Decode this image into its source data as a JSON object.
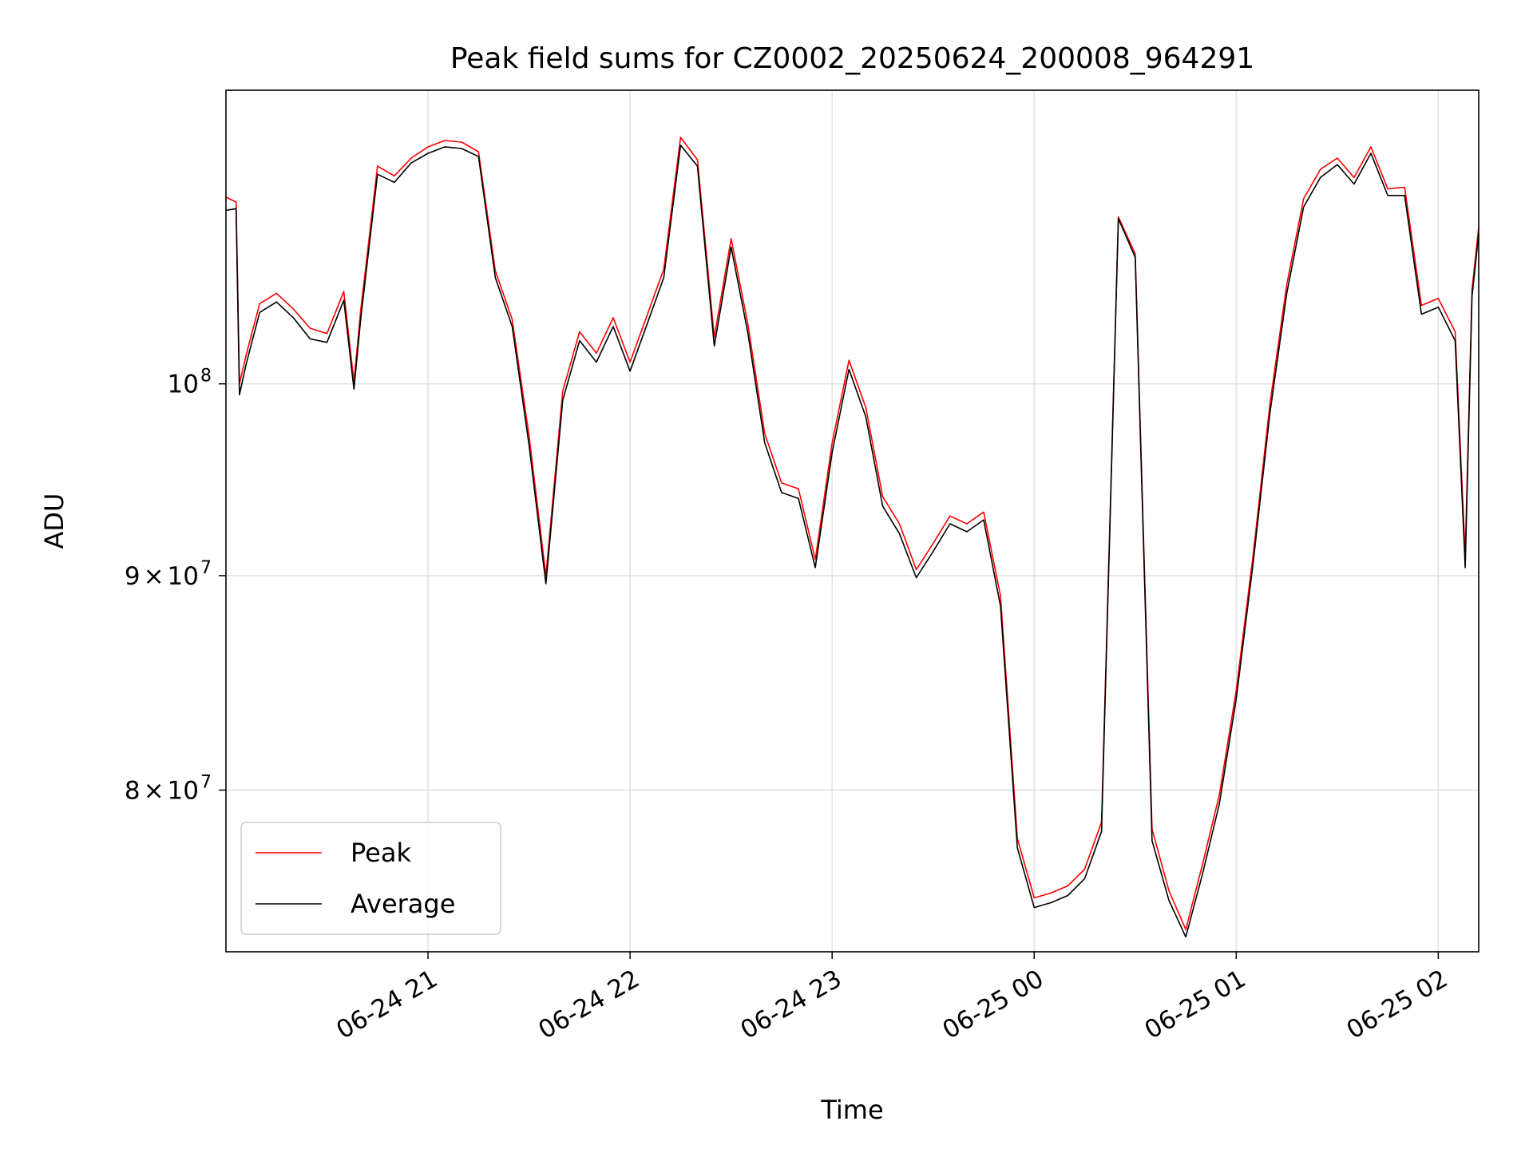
{
  "chart_data": {
    "type": "line",
    "title": "Peak field sums for CZ0002_20250624_200008_964291",
    "xlabel": "Time",
    "ylabel": "ADU",
    "y_scale": "log",
    "grid": true,
    "legend_position": "lower-left",
    "xlim": [
      "2025-06-24 20:00",
      "2025-06-25 02:12"
    ],
    "ylim": [
      73200000,
      117500000
    ],
    "x_ticks": [
      {
        "label": "06-24 21",
        "value": "2025-06-24 21:00"
      },
      {
        "label": "06-24 22",
        "value": "2025-06-24 22:00"
      },
      {
        "label": "06-24 23",
        "value": "2025-06-24 23:00"
      },
      {
        "label": "06-25 00",
        "value": "2025-06-25 00:00"
      },
      {
        "label": "06-25 01",
        "value": "2025-06-25 01:00"
      },
      {
        "label": "06-25 02",
        "value": "2025-06-25 02:00"
      }
    ],
    "y_ticks": [
      {
        "base": "8",
        "exp": "7",
        "mantissa": true,
        "value": 80000000
      },
      {
        "base": "9",
        "exp": "7",
        "mantissa": true,
        "value": 90000000
      },
      {
        "base": "10",
        "exp": "8",
        "mantissa": false,
        "value": 100000000
      }
    ],
    "series": [
      {
        "name": "Peak",
        "color": "#ff0000",
        "x": [
          "2025-06-24 20:00",
          "2025-06-24 20:03",
          "2025-06-24 20:04",
          "2025-06-24 20:06",
          "2025-06-24 20:10",
          "2025-06-24 20:15",
          "2025-06-24 20:20",
          "2025-06-24 20:25",
          "2025-06-24 20:30",
          "2025-06-24 20:35",
          "2025-06-24 20:38",
          "2025-06-24 20:40",
          "2025-06-24 20:45",
          "2025-06-24 20:50",
          "2025-06-24 20:55",
          "2025-06-24 21:00",
          "2025-06-24 21:05",
          "2025-06-24 21:10",
          "2025-06-24 21:15",
          "2025-06-24 21:20",
          "2025-06-24 21:25",
          "2025-06-24 21:30",
          "2025-06-24 21:35",
          "2025-06-24 21:40",
          "2025-06-24 21:45",
          "2025-06-24 21:50",
          "2025-06-24 21:55",
          "2025-06-24 22:00",
          "2025-06-24 22:05",
          "2025-06-24 22:10",
          "2025-06-24 22:15",
          "2025-06-24 22:20",
          "2025-06-24 22:25",
          "2025-06-24 22:30",
          "2025-06-24 22:35",
          "2025-06-24 22:40",
          "2025-06-24 22:45",
          "2025-06-24 22:50",
          "2025-06-24 22:55",
          "2025-06-24 23:00",
          "2025-06-24 23:05",
          "2025-06-24 23:10",
          "2025-06-24 23:15",
          "2025-06-24 23:20",
          "2025-06-24 23:25",
          "2025-06-24 23:30",
          "2025-06-24 23:35",
          "2025-06-24 23:40",
          "2025-06-24 23:45",
          "2025-06-24 23:50",
          "2025-06-24 23:55",
          "2025-06-25 00:00",
          "2025-06-25 00:05",
          "2025-06-25 00:10",
          "2025-06-25 00:15",
          "2025-06-25 00:20",
          "2025-06-25 00:25",
          "2025-06-25 00:30",
          "2025-06-25 00:35",
          "2025-06-25 00:40",
          "2025-06-25 00:45",
          "2025-06-25 00:50",
          "2025-06-25 00:55",
          "2025-06-25 01:00",
          "2025-06-25 01:05",
          "2025-06-25 01:10",
          "2025-06-25 01:15",
          "2025-06-25 01:20",
          "2025-06-25 01:25",
          "2025-06-25 01:30",
          "2025-06-25 01:35",
          "2025-06-25 01:40",
          "2025-06-25 01:45",
          "2025-06-25 01:50",
          "2025-06-25 01:55",
          "2025-06-25 02:00",
          "2025-06-25 02:05",
          "2025-06-25 02:08",
          "2025-06-25 02:10",
          "2025-06-25 02:12"
        ],
        "values": [
          110800000,
          110500000,
          100000000,
          101600000,
          104500000,
          105100000,
          104200000,
          103100000,
          102800000,
          105200000,
          100100000,
          104100000,
          112700000,
          112100000,
          113200000,
          113900000,
          114300000,
          114200000,
          113600000,
          106400000,
          103600000,
          97200000,
          90000000,
          99600000,
          102900000,
          101700000,
          103700000,
          101200000,
          103800000,
          106500000,
          114500000,
          113100000,
          102600000,
          108300000,
          103300000,
          97300000,
          94700000,
          94400000,
          90800000,
          96800000,
          101300000,
          98700000,
          94000000,
          92600000,
          90300000,
          91600000,
          93000000,
          92600000,
          93200000,
          89000000,
          77900000,
          75400000,
          75600000,
          75900000,
          76600000,
          78600000,
          109600000,
          107400000,
          78300000,
          75700000,
          74100000,
          76800000,
          79800000,
          84500000,
          91000000,
          98900000,
          105600000,
          110700000,
          112500000,
          113200000,
          112000000,
          113900000,
          111300000,
          111400000,
          104400000,
          104800000,
          102900000,
          91000000,
          105300000,
          109000000
        ]
      },
      {
        "name": "Average",
        "color": "#000000",
        "x": [
          "2025-06-24 20:00",
          "2025-06-24 20:03",
          "2025-06-24 20:04",
          "2025-06-24 20:06",
          "2025-06-24 20:10",
          "2025-06-24 20:15",
          "2025-06-24 20:20",
          "2025-06-24 20:25",
          "2025-06-24 20:30",
          "2025-06-24 20:35",
          "2025-06-24 20:38",
          "2025-06-24 20:40",
          "2025-06-24 20:45",
          "2025-06-24 20:50",
          "2025-06-24 20:55",
          "2025-06-24 21:00",
          "2025-06-24 21:05",
          "2025-06-24 21:10",
          "2025-06-24 21:15",
          "2025-06-24 21:20",
          "2025-06-24 21:25",
          "2025-06-24 21:30",
          "2025-06-24 21:35",
          "2025-06-24 21:40",
          "2025-06-24 21:45",
          "2025-06-24 21:50",
          "2025-06-24 21:55",
          "2025-06-24 22:00",
          "2025-06-24 22:05",
          "2025-06-24 22:10",
          "2025-06-24 22:15",
          "2025-06-24 22:20",
          "2025-06-24 22:25",
          "2025-06-24 22:30",
          "2025-06-24 22:35",
          "2025-06-24 22:40",
          "2025-06-24 22:45",
          "2025-06-24 22:50",
          "2025-06-24 22:55",
          "2025-06-24 23:00",
          "2025-06-24 23:05",
          "2025-06-24 23:10",
          "2025-06-24 23:15",
          "2025-06-24 23:20",
          "2025-06-24 23:25",
          "2025-06-24 23:30",
          "2025-06-24 23:35",
          "2025-06-24 23:40",
          "2025-06-24 23:45",
          "2025-06-24 23:50",
          "2025-06-24 23:55",
          "2025-06-25 00:00",
          "2025-06-25 00:05",
          "2025-06-25 00:10",
          "2025-06-25 00:15",
          "2025-06-25 00:20",
          "2025-06-25 00:25",
          "2025-06-25 00:30",
          "2025-06-25 00:35",
          "2025-06-25 00:40",
          "2025-06-25 00:45",
          "2025-06-25 00:50",
          "2025-06-25 00:55",
          "2025-06-25 01:00",
          "2025-06-25 01:05",
          "2025-06-25 01:10",
          "2025-06-25 01:15",
          "2025-06-25 01:20",
          "2025-06-25 01:25",
          "2025-06-25 01:30",
          "2025-06-25 01:35",
          "2025-06-25 01:40",
          "2025-06-25 01:45",
          "2025-06-25 01:50",
          "2025-06-25 01:55",
          "2025-06-25 02:00",
          "2025-06-25 02:05",
          "2025-06-25 02:08",
          "2025-06-25 02:10",
          "2025-06-25 02:12"
        ],
        "values": [
          110000000,
          110100000,
          99400000,
          101100000,
          104000000,
          104600000,
          103700000,
          102500000,
          102300000,
          104700000,
          99700000,
          103600000,
          112200000,
          111700000,
          112900000,
          113500000,
          113900000,
          113800000,
          113300000,
          106000000,
          103200000,
          96700000,
          89600000,
          99100000,
          102400000,
          101200000,
          103200000,
          100700000,
          103300000,
          106000000,
          114000000,
          112700000,
          102100000,
          107800000,
          102800000,
          96800000,
          94200000,
          93900000,
          90400000,
          96300000,
          100800000,
          98200000,
          93500000,
          92100000,
          89900000,
          91200000,
          92600000,
          92200000,
          92800000,
          88500000,
          77500000,
          75000000,
          75200000,
          75500000,
          76200000,
          78200000,
          109500000,
          107200000,
          77800000,
          75300000,
          73800000,
          76400000,
          79400000,
          84100000,
          90600000,
          98400000,
          105100000,
          110200000,
          112000000,
          112800000,
          111600000,
          113500000,
          110900000,
          110900000,
          103900000,
          104300000,
          102400000,
          90400000,
          104900000,
          108600000
        ]
      }
    ]
  }
}
